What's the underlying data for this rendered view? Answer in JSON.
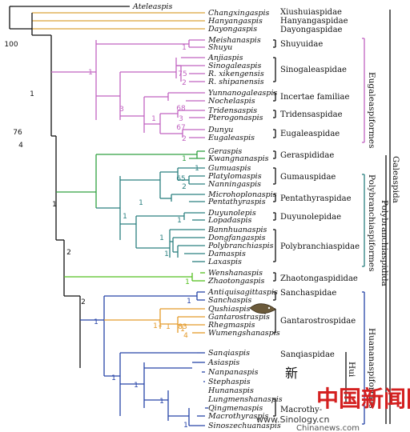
{
  "colors": {
    "outgroup": "#d9a33a",
    "eugalea": "#c163c1",
    "polybranch": "#2b8080",
    "gera": "#30a040",
    "zhaotong": "#55c020",
    "huanan": "#2744a8",
    "gantaro": "#e49a2a",
    "black": "#111111"
  },
  "taxa": [
    "Ateleaspis",
    "Changxingaspis",
    "Hanyangaspis",
    "Dayongaspis",
    "Meishanaspis",
    "Shuyu",
    "Anjiaspis",
    "Sinogaleaspis",
    "R. xikengensis",
    "R. shipanensis",
    "Yunnanogaleaspis",
    "Nochelaspis",
    "Tridensaspis",
    "Pterogonaspis",
    "Dunyu",
    "Eugaleaspis",
    "Geraspis",
    "Kwangnanaspis",
    "Gumuaspis",
    "Platylomaspis",
    "Nanningaspis",
    "Microhoplonaspis",
    "Pentathyraspis",
    "Duyunolepis",
    "Lopadaspis",
    "Bannhuanaspis",
    "Dongfangaspis",
    "Polybranchiaspis",
    "Damaspis",
    "Laxaspis",
    "Wenshanaspis",
    "Zhaotongaspis",
    "Antiquisagittaspis",
    "Sanchaspis",
    "Qushiaspis",
    "Gantarostraspis",
    "Rhegmaspis",
    "Wumengshanaspis",
    "Sanqiaspis",
    "Asiaspis",
    "Nanpanaspis",
    "Stephaspis",
    "Hunanaspis",
    "Lungmenshanaspis",
    "Qingmenaspis",
    "Macrothyraspis",
    "Sinoszechuanaspis"
  ],
  "families": [
    "Xiushuiaspidae",
    "Hanyangaspidae",
    "Dayongaspidae",
    "Shuyuidae",
    "Sinogaleaspidae",
    "Incertae familiae",
    "Tridensaspidae",
    "Eugaleaspidae",
    "Geraspididae",
    "Gumauspidae",
    "Pentathyraspidae",
    "Duyunolepidae",
    "Polybranchiaspidae",
    "Zhaotongaspididae",
    "Sanchaspidae",
    "Gantarostrospidae",
    "Sanqiaspidae",
    "Macrothy-"
  ],
  "orders": [
    "Eugaleaspiformes",
    "Polybranchiaspiformes",
    "Huananaspiformes",
    "Polybranchiaspidida",
    "Galeaspida",
    "Hui"
  ],
  "support": [
    "100",
    "1",
    "1",
    "1",
    "75",
    "2",
    "3",
    "68",
    "3",
    "1",
    "67",
    "2",
    "1",
    "76",
    "4",
    "1",
    "65",
    "2",
    "1",
    "1",
    "1",
    "1",
    "1",
    "1",
    "2",
    "1",
    "2",
    "1",
    "1",
    "1",
    "1",
    "1",
    "83",
    "4",
    "1",
    "1",
    "1",
    "1",
    "1"
  ],
  "watermark": {
    "chinese": "新",
    "chinese2": "中国新闻网",
    "site": "www.Sinology.cn",
    "site2": "Chinanews.com"
  }
}
